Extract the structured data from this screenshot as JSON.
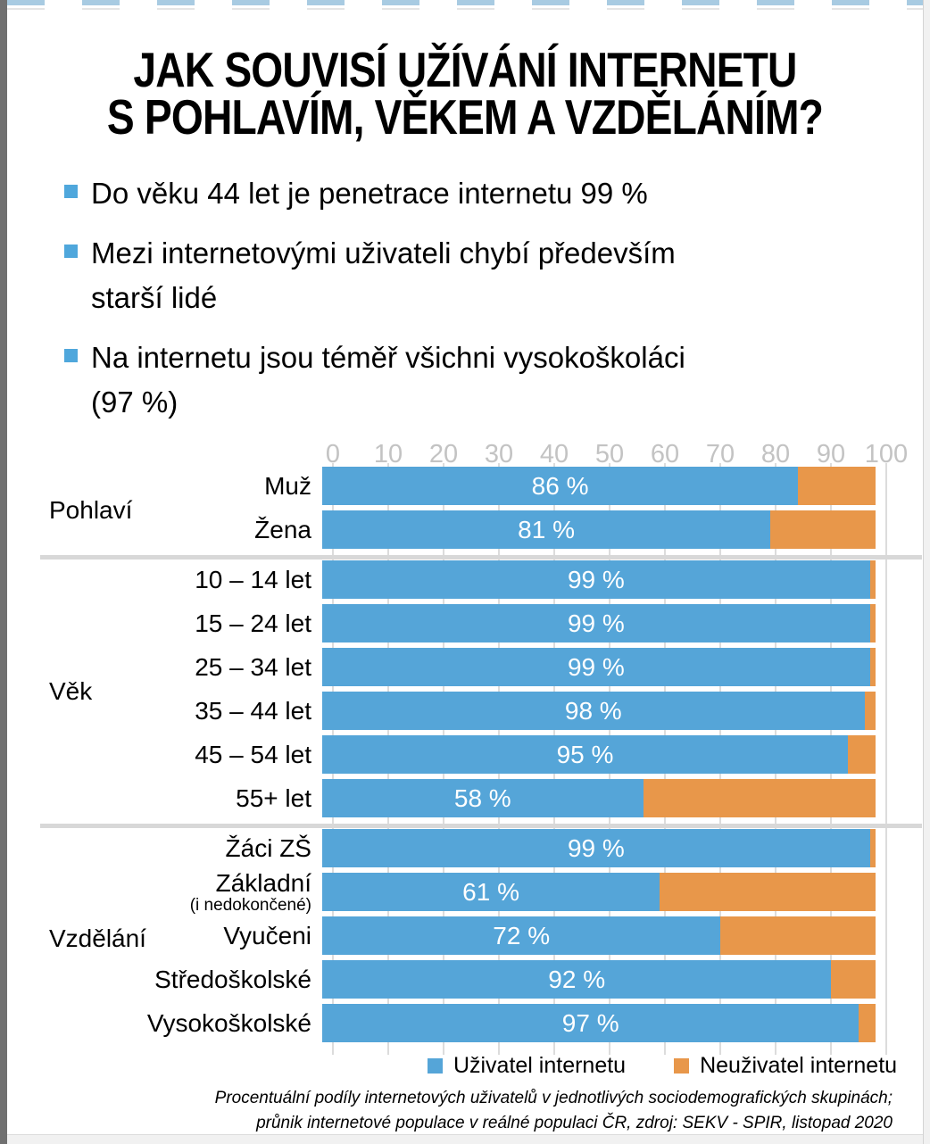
{
  "slide": {
    "title_line1": "JAK SOUVISÍ UŽÍVÁNÍ INTERNETU",
    "title_line2": "S POHLAVÍM, VĚKEM A VZDĚLÁNÍM?",
    "bullets": [
      "Do věku 44 let je penetrace internetu 99 %",
      "Mezi internetovými uživateli chybí především starší lidé",
      "Na internetu jsou téměř všichni vysokoškoláci (97 %)"
    ]
  },
  "chart_data": {
    "type": "bar",
    "orientation": "horizontal",
    "stacked": true,
    "unit": "%",
    "xlim": [
      0,
      100
    ],
    "x_ticks": [
      0,
      10,
      20,
      30,
      40,
      50,
      60,
      70,
      80,
      90,
      100
    ],
    "axis_position": "top",
    "grid": true,
    "series_meta": [
      {
        "name": "Uživatel internetu",
        "color": "#55A5D8"
      },
      {
        "name": "Neuživatel internetu",
        "color": "#E8974A"
      }
    ],
    "groups": [
      {
        "label": "Pohlaví",
        "rows": [
          {
            "label": "Muž",
            "user_pct": 86,
            "nonuser_pct": 14,
            "value_label": "86 %"
          },
          {
            "label": "Žena",
            "user_pct": 81,
            "nonuser_pct": 19,
            "value_label": "81 %"
          }
        ]
      },
      {
        "label": "Věk",
        "rows": [
          {
            "label": "10 – 14 let",
            "user_pct": 99,
            "nonuser_pct": 1,
            "value_label": "99 %"
          },
          {
            "label": "15 – 24 let",
            "user_pct": 99,
            "nonuser_pct": 1,
            "value_label": "99 %"
          },
          {
            "label": "25 – 34 let",
            "user_pct": 99,
            "nonuser_pct": 1,
            "value_label": "99 %"
          },
          {
            "label": "35 – 44 let",
            "user_pct": 98,
            "nonuser_pct": 2,
            "value_label": "98 %"
          },
          {
            "label": "45 – 54 let",
            "user_pct": 95,
            "nonuser_pct": 5,
            "value_label": "95 %"
          },
          {
            "label": "55+ let",
            "user_pct": 58,
            "nonuser_pct": 42,
            "value_label": "58 %"
          }
        ]
      },
      {
        "label": "Vzdělání",
        "rows": [
          {
            "label": "Žáci ZŠ",
            "user_pct": 99,
            "nonuser_pct": 1,
            "value_label": "99 %"
          },
          {
            "label": "Základní",
            "sublabel": "(i nedokončené)",
            "user_pct": 61,
            "nonuser_pct": 39,
            "value_label": "61 %"
          },
          {
            "label": "Vyučeni",
            "user_pct": 72,
            "nonuser_pct": 28,
            "value_label": "72 %"
          },
          {
            "label": "Středoškolské",
            "user_pct": 92,
            "nonuser_pct": 8,
            "value_label": "92 %"
          },
          {
            "label": "Vysokoškolské",
            "user_pct": 97,
            "nonuser_pct": 3,
            "value_label": "97 %"
          }
        ]
      }
    ],
    "legend": [
      "Uživatel internetu",
      "Neuživatel internetu"
    ]
  },
  "footer": {
    "line1": "Procentuální podíly internetových uživatelů v jednotlivých sociodemografických skupinách;",
    "line2": "průnik internetové populace v reálné populaci ČR, zdroj: SEKV - SPIR, listopad 2020"
  },
  "colors": {
    "user_blue": "#55A5D8",
    "nonuser_orange": "#E8974A",
    "bullet_blue": "#4FA7DC",
    "axis_text": "#C3C3C3",
    "gridline": "#DCDCDC",
    "divider": "#D8D8D8",
    "dashed_border_blue": "#A8CBE2"
  }
}
